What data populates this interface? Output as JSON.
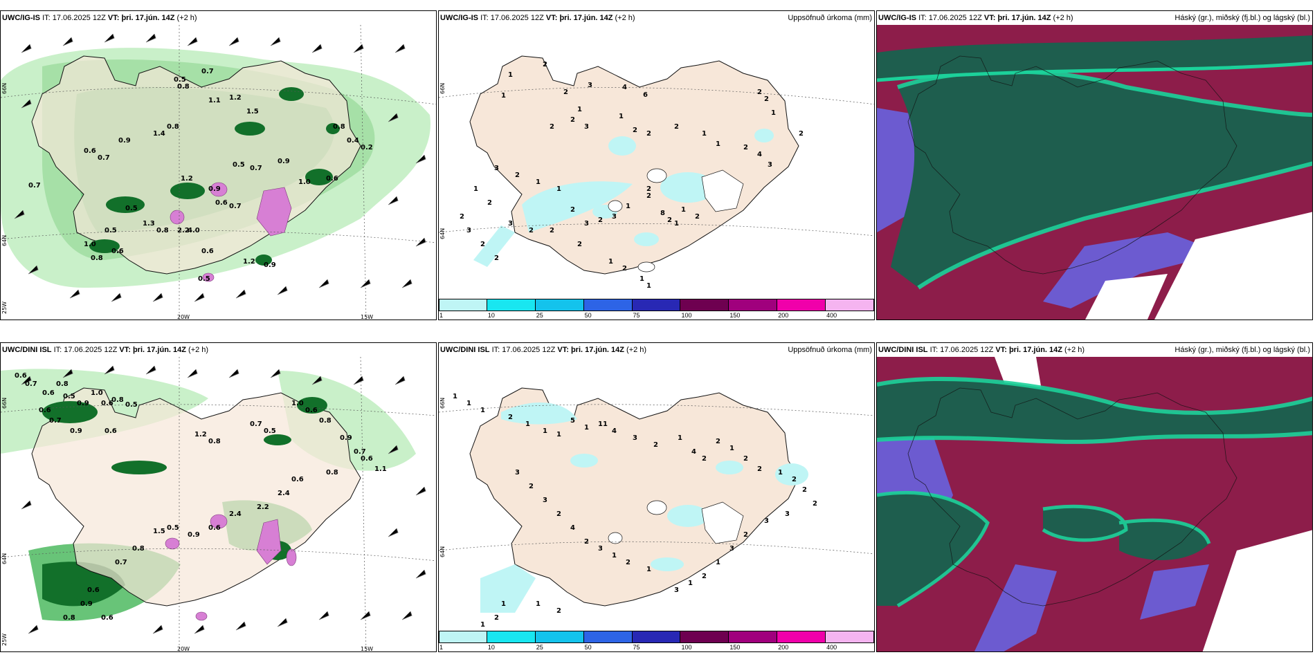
{
  "colors": {
    "land": "#f7e7d9",
    "coast": "#111111",
    "precip_light": "#c9f0c9",
    "precip_mid": "#68c478",
    "precip_heavy": "#12702a",
    "precip_max": "#d77fd4",
    "cloud_high": "#1e5e4e",
    "cloud_mid": "#8d1d4a",
    "cloud_low": "#6c5bd0",
    "cloud_edge": "#1cd19a"
  },
  "row1": {
    "wind": {
      "source": "UWC/IG-IS",
      "it_label": "IT:",
      "it": "17.06.2025 12Z",
      "vt_label": "VT:",
      "vt": "þri. 17.jún. 14Z",
      "lead": "(+2 h)",
      "lon_labels": [
        "20W",
        "15W"
      ],
      "lat_labels": [
        "66N",
        "64N",
        "25W"
      ],
      "values": [
        "0.5",
        "0.7",
        "0.8",
        "1.1",
        "1.2",
        "1.5",
        "0.9",
        "0.6",
        "0.7",
        "1.4",
        "0.8",
        "0.5",
        "0.7",
        "0.9",
        "1.0",
        "0.6",
        "0.8",
        "0.4",
        "0.2",
        "1.2",
        "0.9",
        "0.6",
        "0.7",
        "0.5",
        "1.3",
        "0.8",
        "2.2",
        "4.0",
        "0.7",
        "0.5",
        "0.6",
        "1.0",
        "0.8",
        "0.6",
        "1.2",
        "0.9",
        "0.5"
      ]
    },
    "precip": {
      "source": "UWC/IG-IS",
      "it_label": "IT:",
      "it": "17.06.2025 12Z",
      "vt_label": "VT:",
      "vt": "þri. 17.jún. 14Z",
      "lead": "(+2 h)",
      "title": "Uppsöfnuð úrkoma (mm)",
      "lat_labels": [
        "66N",
        "64N"
      ],
      "values": [
        "1",
        "2",
        "1",
        "2",
        "3",
        "1",
        "4",
        "6",
        "2",
        "2",
        "3",
        "1",
        "2",
        "2",
        "2",
        "1",
        "1",
        "2",
        "4",
        "3",
        "2",
        "2",
        "1",
        "2",
        "3",
        "2",
        "1",
        "1",
        "2",
        "3",
        "2",
        "3",
        "1",
        "2",
        "2",
        "8",
        "2",
        "1",
        "1",
        "2",
        "1",
        "1",
        "2",
        "1",
        "2",
        "2",
        "2",
        "3",
        "2",
        "1",
        "2",
        "3",
        "2",
        "2"
      ]
    },
    "cloud": {
      "source": "UWC/IG-IS",
      "it_label": "IT:",
      "it": "17.06.2025 12Z",
      "vt_label": "VT:",
      "vt": "þri. 17.jún. 14Z",
      "lead": "(+2 h)",
      "title": "Háský (gr.), miðský (fj.bl.) og lágský (bl.)"
    }
  },
  "row2": {
    "wind": {
      "source": "UWC/DINI ISL",
      "it_label": "IT:",
      "it": "17.06.2025 12Z",
      "vt_label": "VT:",
      "vt": "þri. 17.jún. 14Z",
      "lead": "(+2 h)",
      "lon_labels": [
        "20W",
        "15W"
      ],
      "lat_labels": [
        "66N",
        "64N",
        "25W"
      ],
      "values": [
        "0.6",
        "0.7",
        "0.6",
        "0.8",
        "0.5",
        "0.9",
        "1.0",
        "0.6",
        "0.8",
        "0.5",
        "0.6",
        "0.7",
        "0.9",
        "0.6",
        "1.2",
        "0.8",
        "0.7",
        "0.5",
        "1.0",
        "0.6",
        "0.8",
        "0.9",
        "0.7",
        "0.6",
        "1.1",
        "0.8",
        "0.6",
        "2.4",
        "2.2",
        "2.4",
        "0.6",
        "0.9",
        "0.5",
        "1.5",
        "0.8",
        "0.7",
        "0.6",
        "0.9",
        "0.8",
        "0.6"
      ]
    },
    "precip": {
      "source": "UWC/DINI ISL",
      "it_label": "IT:",
      "it": "17.06.2025 12Z",
      "vt_label": "VT:",
      "vt": "þri. 17.jún. 14Z",
      "lead": "(+2 h)",
      "title": "Uppsöfnuð úrkoma (mm)",
      "lat_labels": [
        "66N",
        "64N"
      ],
      "values": [
        "1",
        "1",
        "1",
        "2",
        "1",
        "1",
        "1",
        "5",
        "1",
        "11",
        "4",
        "3",
        "2",
        "1",
        "4",
        "2",
        "2",
        "1",
        "2",
        "2",
        "1",
        "2",
        "2",
        "2",
        "3",
        "3",
        "2",
        "3",
        "1",
        "2",
        "1",
        "3",
        "1",
        "2",
        "1",
        "3",
        "2",
        "4",
        "2",
        "3",
        "2",
        "3",
        "1",
        "2",
        "1",
        "1",
        "2"
      ]
    },
    "cloud": {
      "source": "UWC/DINI ISL",
      "it_label": "IT:",
      "it": "17.06.2025 12Z",
      "vt_label": "VT:",
      "vt": "þri. 17.jún. 14Z",
      "lead": "(+2 h)",
      "title": "Háský (gr.), miðský (fj.bl.) og lágský (bl.)"
    }
  },
  "colorbar": {
    "ticks": [
      "1",
      "10",
      "25",
      "50",
      "75",
      "100",
      "150",
      "200",
      "400"
    ],
    "colors": [
      "#bff5f5",
      "#19e6f0",
      "#14c3ec",
      "#2d64e6",
      "#2828b4",
      "#6e0050",
      "#a0007d",
      "#f000aa",
      "#f5b4f0"
    ]
  }
}
